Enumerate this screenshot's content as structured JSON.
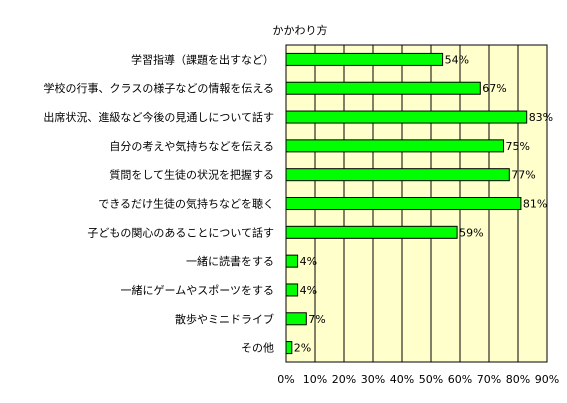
{
  "chart_data": {
    "type": "bar",
    "orientation": "horizontal",
    "title": "かかわり方",
    "categories": [
      "学習指導（課題を出すなど）",
      "学校の行事、クラスの様子などの情報を伝える",
      "出席状況、進級など今後の見通しについて話す",
      "自分の考えや気持ちなどを伝える",
      "質問をして生徒の状況を把握する",
      "できるだけ生徒の気持ちなどを聴く",
      "子どもの関心のあることについて話す",
      "一緒に読書をする",
      "一緒にゲームやスポーツをする",
      "散歩やミニドライブ",
      "その他"
    ],
    "values": [
      54,
      67,
      83,
      75,
      77,
      81,
      59,
      4,
      4,
      7,
      2
    ],
    "value_labels": [
      "54%",
      "67%",
      "83%",
      "75%",
      "77%",
      "81%",
      "59%",
      "4%",
      "4%",
      "7%",
      "2%"
    ],
    "xticks": [
      "0%",
      "10%",
      "20%",
      "30%",
      "40%",
      "50%",
      "60%",
      "70%",
      "80%",
      "90%"
    ],
    "xlim": [
      0,
      90
    ],
    "grid": true,
    "colors": {
      "bar": "#00ff00",
      "bar_edge": "#000000",
      "plot_bg": "#ffffcc",
      "grid": "#000000"
    }
  }
}
